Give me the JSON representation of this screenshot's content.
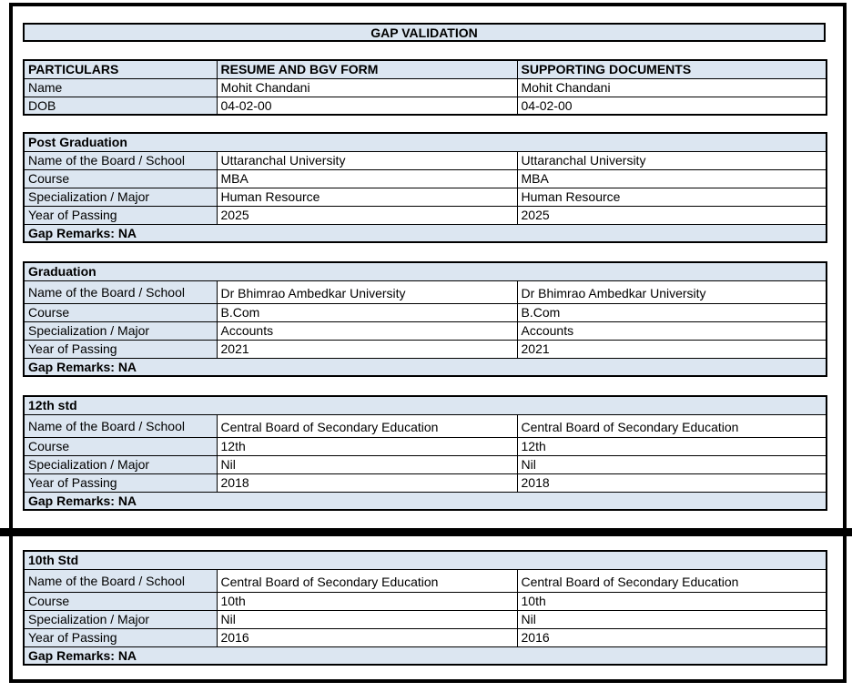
{
  "title": "GAP VALIDATION",
  "colors": {
    "header_fill": "#dce6f1",
    "border": "#000000"
  },
  "personal_table": {
    "headers": [
      "PARTICULARS",
      "RESUME AND BGV FORM",
      "SUPPORTING DOCUMENTS"
    ],
    "rows": [
      {
        "label": "Name",
        "resume": "Mohit Chandani",
        "supporting": "Mohit Chandani"
      },
      {
        "label": "DOB",
        "resume": "04-02-00",
        "supporting": "04-02-00"
      }
    ]
  },
  "sections": [
    {
      "title": "Post Graduation",
      "rows": [
        {
          "label": "Name of the Board / School",
          "resume": "Uttaranchal University",
          "supporting": "Uttaranchal University"
        },
        {
          "label": "Course",
          "resume": "MBA",
          "supporting": "MBA"
        },
        {
          "label": "Specialization / Major",
          "resume": "Human Resource",
          "supporting": "Human Resource"
        },
        {
          "label": "Year of Passing",
          "resume": "2025",
          "supporting": "2025"
        }
      ],
      "gap_remarks": "Gap Remarks: NA"
    },
    {
      "title": "Graduation",
      "rows": [
        {
          "label": "Name of the Board / School",
          "resume": "Dr Bhimrao Ambedkar University",
          "supporting": "Dr Bhimrao Ambedkar University"
        },
        {
          "label": "Course",
          "resume": "B.Com",
          "supporting": "B.Com"
        },
        {
          "label": "Specialization / Major",
          "resume": "Accounts",
          "supporting": "Accounts"
        },
        {
          "label": "Year of Passing",
          "resume": "2021",
          "supporting": "2021"
        }
      ],
      "gap_remarks": "Gap Remarks: NA"
    },
    {
      "title": "12th std",
      "rows": [
        {
          "label": "Name of the Board / School",
          "resume": "Central Board of Secondary Education",
          "supporting": "Central Board of Secondary Education"
        },
        {
          "label": "Course",
          "resume": "12th",
          "supporting": "12th"
        },
        {
          "label": "Specialization / Major",
          "resume": "Nil",
          "supporting": "Nil"
        },
        {
          "label": "Year of Passing",
          "resume": "2018",
          "supporting": "2018"
        }
      ],
      "gap_remarks": "Gap Remarks: NA"
    },
    {
      "title": "10th Std",
      "rows": [
        {
          "label": "Name of the Board / School",
          "resume": "Central Board of Secondary Education",
          "supporting": "Central Board of Secondary Education"
        },
        {
          "label": "Course",
          "resume": "10th",
          "supporting": "10th"
        },
        {
          "label": "Specialization / Major",
          "resume": "Nil",
          "supporting": "Nil"
        },
        {
          "label": "Year of Passing",
          "resume": "2016",
          "supporting": "2016"
        }
      ],
      "gap_remarks": "Gap Remarks: NA"
    }
  ]
}
